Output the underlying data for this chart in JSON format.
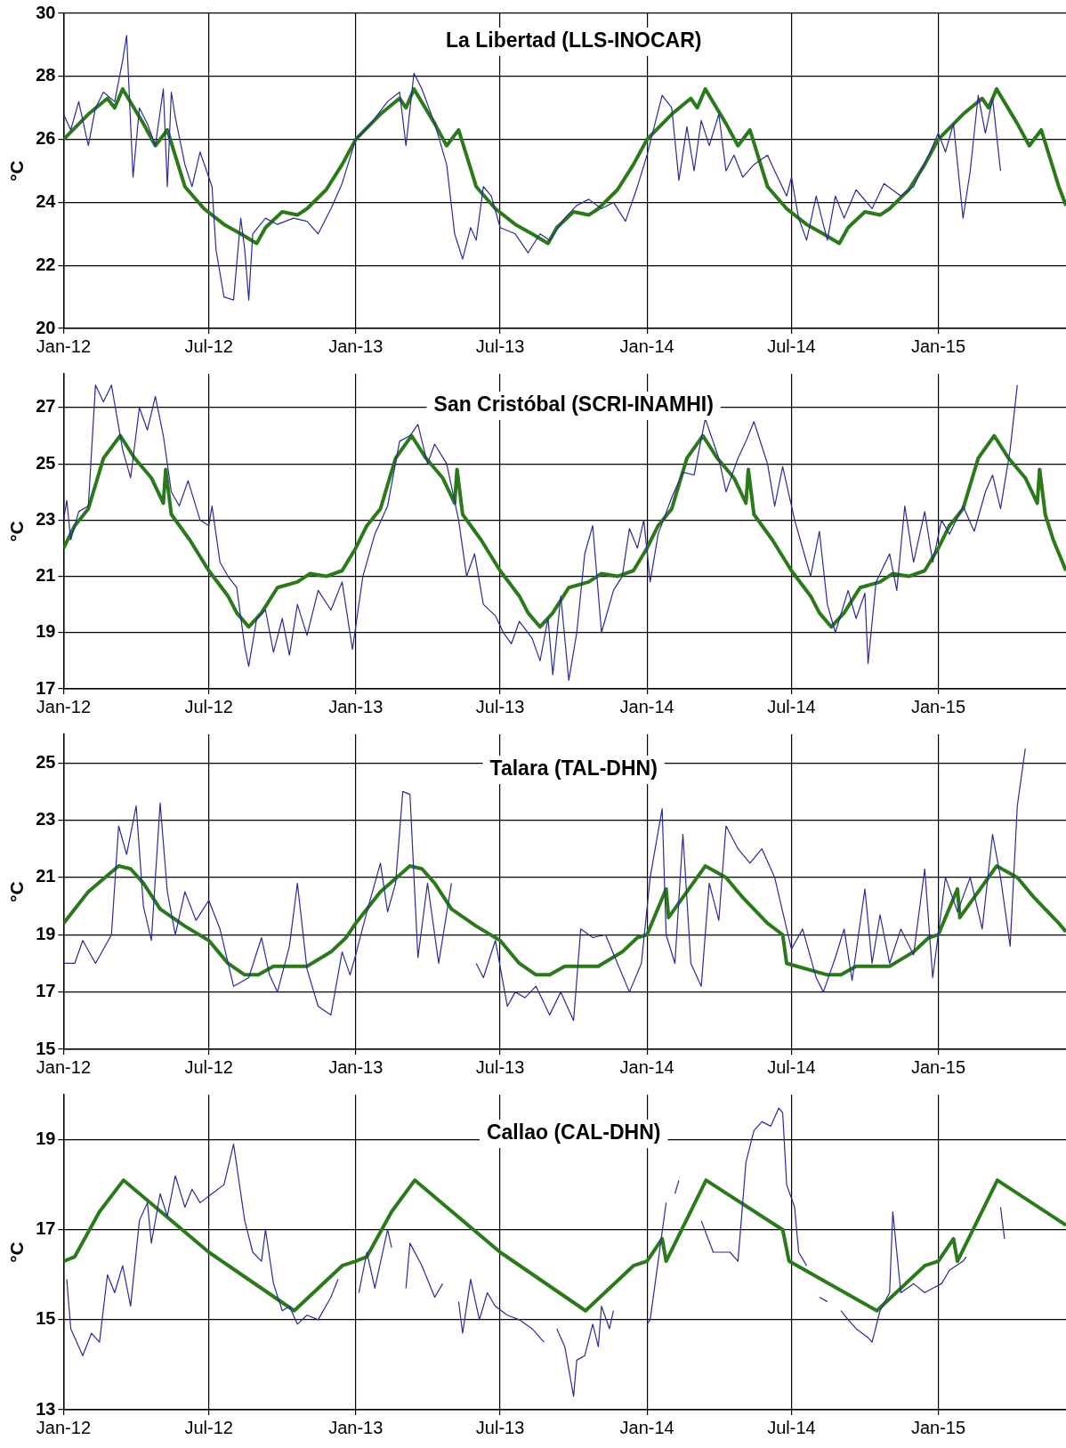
{
  "chart_data": [
    {
      "type": "line",
      "title": "La Libertad (LLS-INOCAR)",
      "ylabel": "°C",
      "grid": true,
      "xlim": [
        "2012-01-01",
        "2015-06-10"
      ],
      "xticks": [
        {
          "value": "2012-01",
          "label": "Jan-12"
        },
        {
          "value": "2012-07",
          "label": "Jul-12"
        },
        {
          "value": "2013-01",
          "label": "Jan-13"
        },
        {
          "value": "2013-07",
          "label": "Jul-13"
        },
        {
          "value": "2014-01",
          "label": "Jan-14"
        },
        {
          "value": "2014-07",
          "label": "Jul-14"
        },
        {
          "value": "2015-01",
          "label": "Jan-15"
        }
      ],
      "ylim": [
        20,
        30
      ],
      "yticks": [
        20,
        22,
        24,
        26,
        28,
        30
      ],
      "series": [
        {
          "color": "#2b2a9a",
          "x": [
            "2012-01-01",
            "2012-01-10",
            "2012-01-20",
            "2012-02-01",
            "2012-02-10",
            "2012-02-20",
            "2012-03-05",
            "2012-03-15",
            "2012-03-20",
            "2012-03-28",
            "2012-04-05",
            "2012-04-15",
            "2012-04-25",
            "2012-05-05",
            "2012-05-10",
            "2012-05-15",
            "2012-05-20",
            "2012-06-01",
            "2012-06-10",
            "2012-06-20",
            "2012-07-05",
            "2012-07-10",
            "2012-07-20",
            "2012-08-01",
            "2012-08-10",
            "2012-08-15",
            "2012-08-20",
            "2012-08-25",
            "2012-09-10",
            "2012-09-25",
            "2012-10-15",
            "2012-11-01",
            "2012-11-15",
            "2012-12-01",
            "2012-12-15",
            "2013-01-01",
            "2013-01-20",
            "2013-02-10",
            "2013-02-25",
            "2013-03-05",
            "2013-03-15",
            "2013-03-25",
            "2013-04-10",
            "2013-04-25",
            "2013-05-05",
            "2013-05-15",
            "2013-05-25",
            "2013-06-01",
            "2013-06-10",
            "2013-06-20",
            "2013-07-01",
            "2013-07-20",
            "2013-08-05",
            "2013-08-20",
            "2013-09-01",
            "2013-09-20",
            "2013-10-05",
            "2013-10-20",
            "2013-11-05",
            "2013-11-20",
            "2013-12-05",
            "2013-12-20",
            "2014-01-01",
            "2014-01-20",
            "2014-02-01",
            "2014-02-10",
            "2014-02-20",
            "2014-03-01",
            "2014-03-10",
            "2014-03-20",
            "2014-04-01",
            "2014-04-10",
            "2014-04-20",
            "2014-05-01",
            "2014-05-15",
            "2014-06-01",
            "2014-06-10",
            "2014-06-25",
            "2014-07-01",
            "2014-07-10",
            "2014-07-20",
            "2014-08-01",
            "2014-08-15",
            "2014-08-25",
            "2014-09-05",
            "2014-09-20",
            "2014-10-10",
            "2014-10-25",
            "2014-11-15",
            "2014-12-01",
            "2014-12-20",
            "2015-01-01",
            "2015-01-10",
            "2015-01-20",
            "2015-02-01",
            "2015-02-10",
            "2015-02-20",
            "2015-03-01",
            "2015-03-10",
            "2015-03-20"
          ],
          "values": [
            26.8,
            26.3,
            27.2,
            25.8,
            27.0,
            27.5,
            27.2,
            28.5,
            29.3,
            24.8,
            27.0,
            26.5,
            25.8,
            27.6,
            24.5,
            27.5,
            26.7,
            25.2,
            24.5,
            25.6,
            24.5,
            22.5,
            21.0,
            20.9,
            23.5,
            22.5,
            20.9,
            23.0,
            23.5,
            23.3,
            23.5,
            23.4,
            23.0,
            23.8,
            24.6,
            26.0,
            26.5,
            27.2,
            27.5,
            25.8,
            28.1,
            27.6,
            26.5,
            25.2,
            23.0,
            22.2,
            23.2,
            22.8,
            24.5,
            24.2,
            23.2,
            23.0,
            22.4,
            23.0,
            22.8,
            23.5,
            23.9,
            24.1,
            23.8,
            24.0,
            23.4,
            24.5,
            25.5,
            27.4,
            27.0,
            24.7,
            26.4,
            25.0,
            26.6,
            25.8,
            26.8,
            25.0,
            25.5,
            24.8,
            25.2,
            25.5,
            25.0,
            24.2,
            24.8,
            23.5,
            22.8,
            24.2,
            22.8,
            24.2,
            23.5,
            24.4,
            23.8,
            24.6,
            24.2,
            24.5,
            25.5,
            26.2,
            25.6,
            26.5,
            23.5,
            25.0,
            27.4,
            26.2,
            27.3,
            25.0
          ]
        },
        {
          "color": "#2a7a1a",
          "x": [
            "2012-01-01",
            "2012-02-01",
            "2012-02-25",
            "2012-03-05",
            "2012-03-15",
            "2012-04-10",
            "2012-04-25",
            "2012-05-10",
            "2012-06-01",
            "2012-06-25",
            "2012-07-20",
            "2012-08-10",
            "2012-08-30",
            "2012-09-10",
            "2012-10-01",
            "2012-10-20",
            "2012-11-01",
            "2012-11-25",
            "2012-12-15",
            "2013-01-01",
            "2013-02-01",
            "2013-02-25",
            "2013-03-05",
            "2013-03-15",
            "2013-04-10",
            "2013-04-25",
            "2013-05-10",
            "2013-06-01",
            "2013-06-25",
            "2013-07-20",
            "2013-08-10",
            "2013-08-30",
            "2013-09-10",
            "2013-10-01",
            "2013-10-20",
            "2013-11-01",
            "2013-11-25",
            "2013-12-15",
            "2014-01-01",
            "2014-02-01",
            "2014-02-25",
            "2014-03-05",
            "2014-03-15",
            "2014-04-10",
            "2014-04-25",
            "2014-05-10",
            "2014-06-01",
            "2014-06-25",
            "2014-07-20",
            "2014-08-10",
            "2014-08-30",
            "2014-09-10",
            "2014-10-01",
            "2014-10-20",
            "2014-11-01",
            "2014-11-25",
            "2014-12-15",
            "2015-01-01",
            "2015-02-01",
            "2015-02-25",
            "2015-03-05",
            "2015-03-15",
            "2015-04-10",
            "2015-04-25",
            "2015-05-10",
            "2015-06-01",
            "2015-06-10"
          ],
          "values": [
            26.0,
            26.8,
            27.3,
            27.0,
            27.6,
            26.5,
            25.8,
            26.3,
            24.5,
            23.8,
            23.3,
            23.0,
            22.7,
            23.2,
            23.7,
            23.6,
            23.8,
            24.4,
            25.2,
            26.0,
            26.8,
            27.3,
            27.0,
            27.6,
            26.5,
            25.8,
            26.3,
            24.5,
            23.8,
            23.3,
            23.0,
            22.7,
            23.2,
            23.7,
            23.6,
            23.8,
            24.4,
            25.2,
            26.0,
            26.8,
            27.3,
            27.0,
            27.6,
            26.5,
            25.8,
            26.3,
            24.5,
            23.8,
            23.3,
            23.0,
            22.7,
            23.2,
            23.7,
            23.6,
            23.8,
            24.4,
            25.2,
            26.0,
            26.8,
            27.3,
            27.0,
            27.6,
            26.5,
            25.8,
            26.3,
            24.5,
            23.9
          ]
        }
      ]
    },
    {
      "type": "line",
      "title": "San Cristóbal (SCRI-INAMHI)",
      "ylabel": "°C",
      "grid": true,
      "xlim": [
        "2012-01-01",
        "2015-06-10"
      ],
      "xticks": [
        {
          "value": "2012-01",
          "label": "Jan-12"
        },
        {
          "value": "2012-07",
          "label": "Jul-12"
        },
        {
          "value": "2013-01",
          "label": "Jan-13"
        },
        {
          "value": "2013-07",
          "label": "Jul-13"
        },
        {
          "value": "2014-01",
          "label": "Jan-14"
        },
        {
          "value": "2014-07",
          "label": "Jul-14"
        },
        {
          "value": "2015-01",
          "label": "Jan-15"
        }
      ],
      "ylim": [
        17,
        28.2
      ],
      "yticks": [
        17,
        19,
        21,
        23,
        25,
        27
      ],
      "series": [
        {
          "color": "#2b2a9a",
          "x": [
            "2012-01-01",
            "2012-01-05",
            "2012-01-10",
            "2012-01-20",
            "2012-02-01",
            "2012-02-10",
            "2012-02-20",
            "2012-03-01",
            "2012-03-15",
            "2012-03-25",
            "2012-04-05",
            "2012-04-15",
            "2012-04-25",
            "2012-05-05",
            "2012-05-15",
            "2012-05-25",
            "2012-06-05",
            "2012-06-20",
            "2012-07-01",
            "2012-07-05",
            "2012-07-15",
            "2012-07-25",
            "2012-08-05",
            "2012-08-15",
            "2012-08-20",
            "2012-08-30",
            "2012-09-10",
            "2012-09-20",
            "2012-10-01",
            "2012-10-10",
            "2012-10-20",
            "2012-11-01",
            "2012-11-15",
            "2012-12-01",
            "2012-12-15",
            "2012-12-28",
            "2013-01-10",
            "2013-01-25",
            "2013-02-10",
            "2013-02-25",
            "2013-03-10",
            "2013-03-20",
            "2013-04-01",
            "2013-04-10",
            "2013-04-25",
            "2013-05-10",
            "2013-05-20",
            "2013-05-30",
            "2013-06-10",
            "2013-06-25",
            "2013-07-05",
            "2013-07-15",
            "2013-07-25",
            "2013-08-10",
            "2013-08-20",
            "2013-08-30",
            "2013-09-05",
            "2013-09-15",
            "2013-09-25",
            "2013-10-05",
            "2013-10-15",
            "2013-10-25",
            "2013-11-05",
            "2013-11-20",
            "2013-12-01",
            "2013-12-10",
            "2013-12-20",
            "2013-12-28",
            "2014-01-05",
            "2014-01-15",
            "2014-02-01",
            "2014-02-15",
            "2014-03-01",
            "2014-03-15",
            "2014-04-01",
            "2014-04-10",
            "2014-04-25",
            "2014-05-05",
            "2014-05-15",
            "2014-06-01",
            "2014-06-10",
            "2014-06-20",
            "2014-07-05",
            "2014-07-15",
            "2014-07-25",
            "2014-08-05",
            "2014-08-15",
            "2014-08-25",
            "2014-09-10",
            "2014-09-20",
            "2014-10-01",
            "2014-10-05",
            "2014-10-15",
            "2014-11-01",
            "2014-11-10",
            "2014-11-20",
            "2014-12-01",
            "2014-12-15",
            "2014-12-25",
            "2015-01-05",
            "2015-01-15",
            "2015-02-01",
            "2015-02-15",
            "2015-03-01",
            "2015-03-10",
            "2015-03-20",
            "2015-04-01",
            "2015-04-10"
          ],
          "values": [
            23.0,
            23.7,
            22.3,
            23.3,
            23.5,
            27.8,
            27.2,
            27.8,
            25.5,
            24.5,
            27.0,
            26.2,
            27.4,
            26.0,
            24.0,
            23.5,
            24.4,
            23.0,
            22.8,
            23.5,
            21.5,
            21.0,
            20.6,
            18.5,
            17.8,
            19.5,
            19.8,
            18.3,
            19.5,
            18.2,
            20.0,
            18.9,
            20.5,
            19.8,
            20.8,
            18.4,
            21.0,
            22.5,
            23.5,
            25.8,
            26.0,
            26.4,
            25.0,
            25.7,
            25.0,
            23.0,
            21.0,
            21.8,
            20.0,
            19.6,
            19.0,
            18.6,
            19.4,
            18.8,
            18.0,
            19.5,
            17.5,
            20.3,
            17.3,
            19.0,
            21.8,
            22.8,
            19.0,
            20.5,
            21.0,
            22.7,
            22.0,
            23.0,
            20.8,
            22.5,
            23.8,
            24.7,
            24.6,
            26.6,
            25.2,
            24.0,
            25.2,
            25.8,
            26.5,
            25.0,
            23.5,
            24.9,
            23.0,
            22.0,
            21.0,
            22.6,
            20.0,
            19.0,
            20.5,
            19.5,
            20.4,
            17.9,
            20.8,
            21.8,
            20.5,
            23.5,
            21.5,
            23.3,
            21.5,
            23.0,
            22.5,
            23.5,
            22.6,
            24.0,
            24.6,
            23.4,
            25.5,
            27.8
          ]
        },
        {
          "color": "#2a7a1a",
          "x": [
            "2012-01-01",
            "2012-01-15",
            "2012-02-01",
            "2012-02-20",
            "2012-03-12",
            "2012-03-30",
            "2012-04-20",
            "2012-05-05",
            "2012-05-08",
            "2012-05-15",
            "2012-06-07",
            "2012-07-01",
            "2012-07-25",
            "2012-08-05",
            "2012-08-20",
            "2012-09-05",
            "2012-09-25",
            "2012-10-20",
            "2012-11-05",
            "2012-11-25",
            "2012-12-15",
            "2013-01-01",
            "2013-01-15",
            "2013-02-01",
            "2013-02-20",
            "2013-03-12",
            "2013-03-30",
            "2013-04-20",
            "2013-05-05",
            "2013-05-08",
            "2013-05-15",
            "2013-06-07",
            "2013-07-01",
            "2013-07-25",
            "2013-08-05",
            "2013-08-20",
            "2013-09-05",
            "2013-09-25",
            "2013-10-20",
            "2013-11-05",
            "2013-11-25",
            "2013-12-15",
            "2014-01-01",
            "2014-01-15",
            "2014-02-01",
            "2014-02-20",
            "2014-03-12",
            "2014-03-30",
            "2014-04-20",
            "2014-05-05",
            "2014-05-08",
            "2014-05-15",
            "2014-06-07",
            "2014-07-01",
            "2014-07-25",
            "2014-08-05",
            "2014-08-20",
            "2014-09-05",
            "2014-09-25",
            "2014-10-20",
            "2014-11-05",
            "2014-11-25",
            "2014-12-15",
            "2015-01-01",
            "2015-01-15",
            "2015-02-01",
            "2015-02-20",
            "2015-03-12",
            "2015-03-30",
            "2015-04-20",
            "2015-05-05",
            "2015-05-08",
            "2015-05-15",
            "2015-05-25",
            "2015-06-10"
          ],
          "values": [
            22.0,
            22.8,
            23.4,
            25.2,
            26.0,
            25.2,
            24.5,
            23.6,
            24.8,
            23.2,
            22.3,
            21.2,
            20.3,
            19.7,
            19.2,
            19.7,
            20.6,
            20.8,
            21.1,
            21.0,
            21.2,
            22.0,
            22.8,
            23.4,
            25.2,
            26.0,
            25.2,
            24.5,
            23.6,
            24.8,
            23.2,
            22.3,
            21.2,
            20.3,
            19.7,
            19.2,
            19.7,
            20.6,
            20.8,
            21.1,
            21.0,
            21.2,
            22.0,
            22.8,
            23.4,
            25.2,
            26.0,
            25.2,
            24.5,
            23.6,
            24.8,
            23.2,
            22.3,
            21.2,
            20.3,
            19.7,
            19.2,
            19.7,
            20.6,
            20.8,
            21.1,
            21.0,
            21.2,
            22.0,
            22.8,
            23.4,
            25.2,
            26.0,
            25.2,
            24.5,
            23.6,
            24.8,
            23.2,
            22.3,
            21.2
          ]
        }
      ]
    },
    {
      "type": "line",
      "title": "Talara (TAL-DHN)",
      "ylabel": "°C",
      "grid": true,
      "xlim": [
        "2012-01-01",
        "2015-06-10"
      ],
      "xticks": [
        {
          "value": "2012-01",
          "label": "Jan-12"
        },
        {
          "value": "2012-07",
          "label": "Jul-12"
        },
        {
          "value": "2013-01",
          "label": "Jan-13"
        },
        {
          "value": "2013-07",
          "label": "Jul-13"
        },
        {
          "value": "2014-01",
          "label": "Jan-14"
        },
        {
          "value": "2014-07",
          "label": "Jul-14"
        },
        {
          "value": "2015-01",
          "label": "Jan-15"
        }
      ],
      "ylim": [
        15,
        26
      ],
      "yticks": [
        15,
        17,
        19,
        21,
        23,
        25
      ],
      "series": [
        {
          "color": "#2b2a9a",
          "x": [
            "2012-01-01",
            "2012-01-15",
            "2012-01-25",
            "2012-02-10",
            "2012-03-01",
            "2012-03-10",
            "2012-03-20",
            "2012-04-01",
            "2012-04-10",
            "2012-04-20",
            "2012-05-01",
            "2012-05-10",
            "2012-05-20",
            "2012-06-01",
            "2012-06-15",
            "2012-07-01",
            "2012-07-15",
            "2012-08-01",
            "2012-08-20",
            "2012-09-05",
            "2012-09-15",
            "2012-09-25",
            "2012-10-10",
            "2012-10-20",
            "2012-11-01",
            "2012-11-15",
            "2012-12-01",
            "2012-12-15",
            "2012-12-25",
            "2013-01-01",
            "2013-01-15",
            "2013-02-01",
            "2013-02-10",
            "2013-02-20",
            "2013-03-01",
            "2013-03-10",
            "2013-03-20",
            "2013-04-01",
            "2013-04-15",
            "2013-05-01",
            "2013-05-15",
            "2013-06-01",
            "2013-06-10",
            "2013-06-25",
            "2013-07-10",
            "2013-07-20",
            "2013-08-01",
            "2013-08-15",
            "2013-09-01",
            "2013-09-15",
            "2013-10-01",
            "2013-10-10",
            "2013-10-25",
            "2013-11-10",
            "2013-11-25",
            "2013-12-10",
            "2013-12-25",
            "2014-01-05",
            "2014-01-20",
            "2014-01-25",
            "2014-02-05",
            "2014-02-15",
            "2014-02-25",
            "2014-03-10",
            "2014-03-20",
            "2014-04-01",
            "2014-04-10",
            "2014-04-25",
            "2014-05-10",
            "2014-05-25",
            "2014-06-10",
            "2014-06-20",
            "2014-07-01",
            "2014-07-15",
            "2014-08-01",
            "2014-08-10",
            "2014-08-25",
            "2014-09-05",
            "2014-09-15",
            "2014-10-01",
            "2014-10-10",
            "2014-10-20",
            "2014-11-01",
            "2014-11-15",
            "2014-12-01",
            "2014-12-15",
            "2014-12-25",
            "2015-01-10",
            "2015-01-25",
            "2015-02-10",
            "2015-02-25",
            "2015-03-10",
            "2015-03-20",
            "2015-04-01",
            "2015-04-10",
            "2015-04-20"
          ],
          "values": [
            18.0,
            18.0,
            18.8,
            18.0,
            19.0,
            22.8,
            21.8,
            23.5,
            20.0,
            18.8,
            23.6,
            20.5,
            19.0,
            20.5,
            19.5,
            20.2,
            19.2,
            17.2,
            17.5,
            18.9,
            17.6,
            17.0,
            18.6,
            20.8,
            17.8,
            16.5,
            16.2,
            18.4,
            17.6,
            18.3,
            19.8,
            21.5,
            19.8,
            20.8,
            24.0,
            23.9,
            18.2,
            20.8,
            18.0,
            20.8,
            null,
            18.0,
            17.5,
            18.8,
            16.5,
            17.0,
            16.8,
            17.2,
            16.2,
            17.0,
            16.0,
            19.2,
            18.9,
            19.0,
            18.0,
            17.0,
            18.0,
            21.0,
            23.4,
            19.0,
            18.0,
            22.5,
            18.0,
            17.2,
            20.8,
            19.5,
            22.8,
            22.0,
            21.5,
            22.0,
            21.0,
            19.8,
            18.5,
            19.2,
            17.5,
            17.0,
            18.2,
            19.2,
            17.4,
            20.6,
            18.0,
            19.7,
            18.0,
            19.2,
            18.3,
            21.3,
            17.5,
            21.0,
            19.8,
            21.0,
            19.2,
            22.5,
            21.0,
            18.6,
            23.5,
            25.5
          ]
        },
        {
          "color": "#2a7a1a",
          "x": [
            "2012-01-01",
            "2012-02-01",
            "2012-03-10",
            "2012-03-25",
            "2012-04-10",
            "2012-05-01",
            "2012-06-01",
            "2012-07-01",
            "2012-07-25",
            "2012-08-15",
            "2012-09-01",
            "2012-09-20",
            "2012-11-01",
            "2012-12-01",
            "2012-12-20",
            "2013-01-01",
            "2013-02-01",
            "2013-03-10",
            "2013-03-25",
            "2013-04-10",
            "2013-05-01",
            "2013-06-01",
            "2013-07-01",
            "2013-07-25",
            "2013-08-15",
            "2013-09-01",
            "2013-09-20",
            "2013-11-01",
            "2013-12-01",
            "2013-12-20",
            "2014-01-01",
            "2014-01-25",
            "2014-01-28",
            "2014-03-15",
            "2014-04-10",
            "2014-05-01",
            "2014-06-01",
            "2014-06-20",
            "2014-06-25",
            "2014-08-15",
            "2014-09-01",
            "2014-09-20",
            "2014-11-01",
            "2014-12-01",
            "2014-12-20",
            "2015-01-01",
            "2015-01-25",
            "2015-01-28",
            "2015-03-15",
            "2015-04-10",
            "2015-05-01",
            "2015-06-01",
            "2015-06-10"
          ],
          "values": [
            19.4,
            20.5,
            21.4,
            21.3,
            20.8,
            19.9,
            19.3,
            18.8,
            18.0,
            17.6,
            17.6,
            17.9,
            17.9,
            18.4,
            18.9,
            19.4,
            20.5,
            21.4,
            21.3,
            20.8,
            19.9,
            19.3,
            18.8,
            18.0,
            17.6,
            17.6,
            17.9,
            17.9,
            18.4,
            18.9,
            19.0,
            20.6,
            19.6,
            21.4,
            21.0,
            20.3,
            19.4,
            19.0,
            18.0,
            17.6,
            17.6,
            17.9,
            17.9,
            18.4,
            18.9,
            19.0,
            20.6,
            19.6,
            21.4,
            21.0,
            20.3,
            19.4,
            19.1
          ]
        }
      ]
    },
    {
      "type": "line",
      "title": "Callao (CAL-DHN)",
      "ylabel": "°C",
      "grid": true,
      "xlim": [
        "2012-01-01",
        "2015-06-10"
      ],
      "xticks": [
        {
          "value": "2012-01",
          "label": "Jan-12"
        },
        {
          "value": "2012-07",
          "label": "Jul-12"
        },
        {
          "value": "2013-01",
          "label": "Jan-13"
        },
        {
          "value": "2013-07",
          "label": "Jul-13"
        },
        {
          "value": "2014-01",
          "label": "Jan-14"
        },
        {
          "value": "2014-07",
          "label": "Jul-14"
        },
        {
          "value": "2015-01",
          "label": "Jan-15"
        }
      ],
      "ylim": [
        13,
        20
      ],
      "yticks": [
        13,
        15,
        17,
        19
      ],
      "series": [
        {
          "color": "#2b2a9a",
          "x": [
            "2012-01-05",
            "2012-01-10",
            "2012-01-25",
            "2012-02-05",
            "2012-02-15",
            "2012-02-25",
            "2012-03-05",
            "2012-03-15",
            "2012-03-25",
            "2012-04-05",
            "2012-04-15",
            "2012-04-20",
            "2012-05-01",
            "2012-05-10",
            "2012-05-20",
            "2012-06-01",
            "2012-06-10",
            "2012-06-20",
            "2012-07-05",
            "2012-07-20",
            "2012-08-01",
            "2012-08-15",
            "2012-08-25",
            "2012-09-05",
            "2012-09-10",
            "2012-09-20",
            "2012-10-01",
            "2012-10-10",
            "2012-10-20",
            "2012-11-01",
            "2012-11-15",
            "2012-12-01",
            "2012-12-10",
            "2012-12-15",
            "2013-01-05",
            "2013-01-15",
            "2013-01-25",
            "2013-02-10",
            "2013-02-15",
            "2013-02-20",
            "2013-03-05",
            "2013-03-10",
            "2013-03-25",
            "2013-04-10",
            "2013-04-20",
            "2013-05-05",
            "2013-05-10",
            "2013-05-15",
            "2013-05-25",
            "2013-06-05",
            "2013-06-15",
            "2013-06-25",
            "2013-07-10",
            "2013-07-25",
            "2013-08-10",
            "2013-08-25",
            "2013-09-01",
            "2013-09-10",
            "2013-09-20",
            "2013-10-01",
            "2013-10-05",
            "2013-10-15",
            "2013-10-25",
            "2013-11-01",
            "2013-11-05",
            "2013-11-15",
            "2013-11-20",
            "2013-11-25",
            "2014-01-01",
            "2014-01-05",
            "2014-01-15",
            "2014-01-25",
            "2014-02-01",
            "2014-02-05",
            "2014-02-10",
            "2014-02-12",
            "2014-03-10",
            "2014-03-25",
            "2014-04-15",
            "2014-04-25",
            "2014-05-05",
            "2014-05-15",
            "2014-05-25",
            "2014-06-05",
            "2014-06-15",
            "2014-06-20",
            "2014-06-25",
            "2014-07-05",
            "2014-07-10",
            "2014-07-20",
            "2014-07-25",
            "2014-08-05",
            "2014-08-15",
            "2014-08-20",
            "2014-09-01",
            "2014-09-10",
            "2014-09-20",
            "2014-10-05",
            "2014-10-10",
            "2014-10-20",
            "2014-11-01",
            "2014-11-05",
            "2014-11-15",
            "2014-12-01",
            "2014-12-15",
            "2014-12-25",
            "2015-01-05",
            "2015-01-15",
            "2015-02-01",
            "2015-02-05",
            "2015-02-15",
            "2015-03-20",
            "2015-03-25"
          ],
          "values": [
            15.9,
            14.8,
            14.2,
            14.7,
            14.5,
            16.0,
            15.6,
            16.2,
            15.3,
            17.2,
            17.6,
            16.7,
            17.8,
            17.3,
            18.2,
            17.5,
            17.9,
            17.6,
            17.8,
            18.0,
            18.9,
            17.2,
            16.5,
            16.3,
            17.0,
            15.8,
            15.2,
            15.3,
            14.9,
            15.1,
            15.0,
            15.5,
            15.9,
            null,
            15.6,
            16.5,
            15.7,
            17.0,
            16.6,
            null,
            15.7,
            16.7,
            16.2,
            15.5,
            15.8,
            null,
            15.4,
            14.7,
            15.9,
            15.0,
            15.6,
            15.3,
            15.1,
            15.0,
            14.8,
            14.5,
            null,
            14.8,
            14.4,
            13.3,
            14.1,
            14.2,
            14.9,
            14.4,
            15.3,
            14.8,
            15.2,
            null,
            14.9,
            15.0,
            16.3,
            17.6,
            null,
            17.8,
            18.1,
            null,
            17.2,
            16.5,
            16.5,
            16.3,
            18.5,
            19.2,
            19.4,
            19.3,
            19.7,
            19.6,
            18.0,
            17.5,
            16.5,
            16.2,
            null,
            15.5,
            15.4,
            null,
            15.2,
            15.0,
            14.8,
            14.6,
            14.5,
            15.2,
            15.6,
            17.4,
            15.6,
            15.8,
            15.6,
            15.7,
            15.8,
            16.1,
            16.3,
            16.4,
            null,
            17.5,
            16.8
          ]
        },
        {
          "color": "#2a7a1a",
          "x": [
            "2012-01-01",
            "2012-01-15",
            "2012-02-15",
            "2012-03-16",
            "2012-07-01",
            "2012-10-16",
            "2012-11-15",
            "2012-12-15",
            "2013-01-01",
            "2013-01-15",
            "2013-02-15",
            "2013-03-16",
            "2013-07-01",
            "2013-10-16",
            "2013-11-15",
            "2013-12-15",
            "2014-01-01",
            "2014-01-20",
            "2014-01-25",
            "2014-03-16",
            "2014-06-20",
            "2014-06-28",
            "2014-10-16",
            "2014-11-15",
            "2014-12-15",
            "2015-01-01",
            "2015-01-20",
            "2015-01-25",
            "2015-03-16",
            "2015-06-10"
          ],
          "values": [
            16.3,
            16.4,
            17.4,
            18.1,
            16.5,
            15.2,
            15.7,
            16.2,
            16.3,
            16.4,
            17.4,
            18.1,
            16.5,
            15.2,
            15.7,
            16.2,
            16.3,
            16.8,
            16.3,
            18.1,
            17.0,
            16.3,
            15.2,
            15.7,
            16.2,
            16.3,
            16.8,
            16.3,
            18.1,
            17.1
          ]
        }
      ]
    }
  ]
}
